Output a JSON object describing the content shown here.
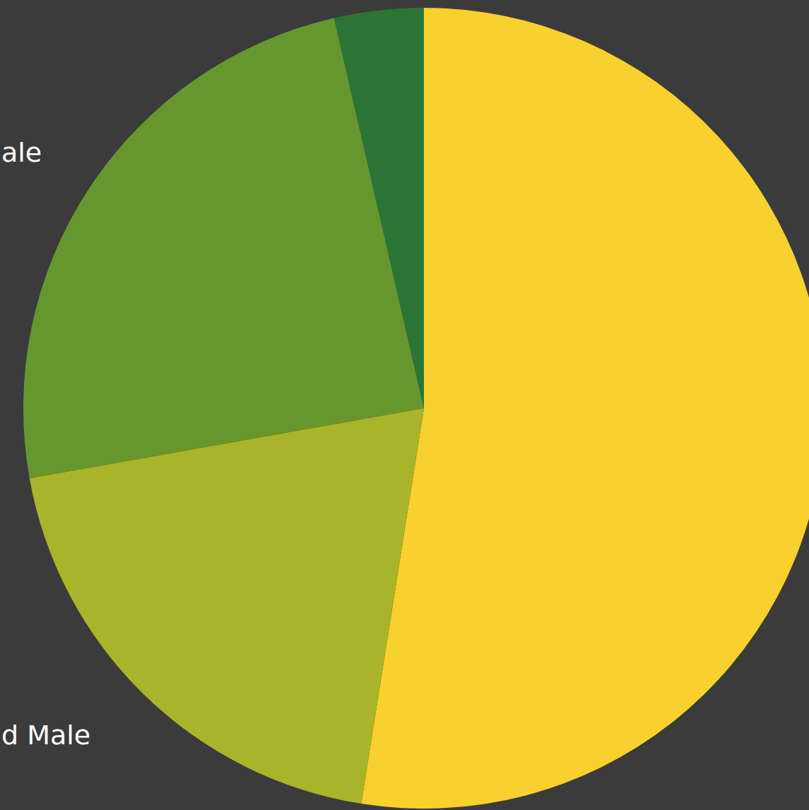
{
  "chart_data": {
    "type": "pie",
    "categories": [
      null,
      "d Male",
      "ale",
      null
    ],
    "values": [
      52.5,
      19.7,
      24.2,
      3.6
    ],
    "colors": [
      "#f8d12f",
      "#a9b42a",
      "#67962f",
      "#2b7534"
    ]
  }
}
